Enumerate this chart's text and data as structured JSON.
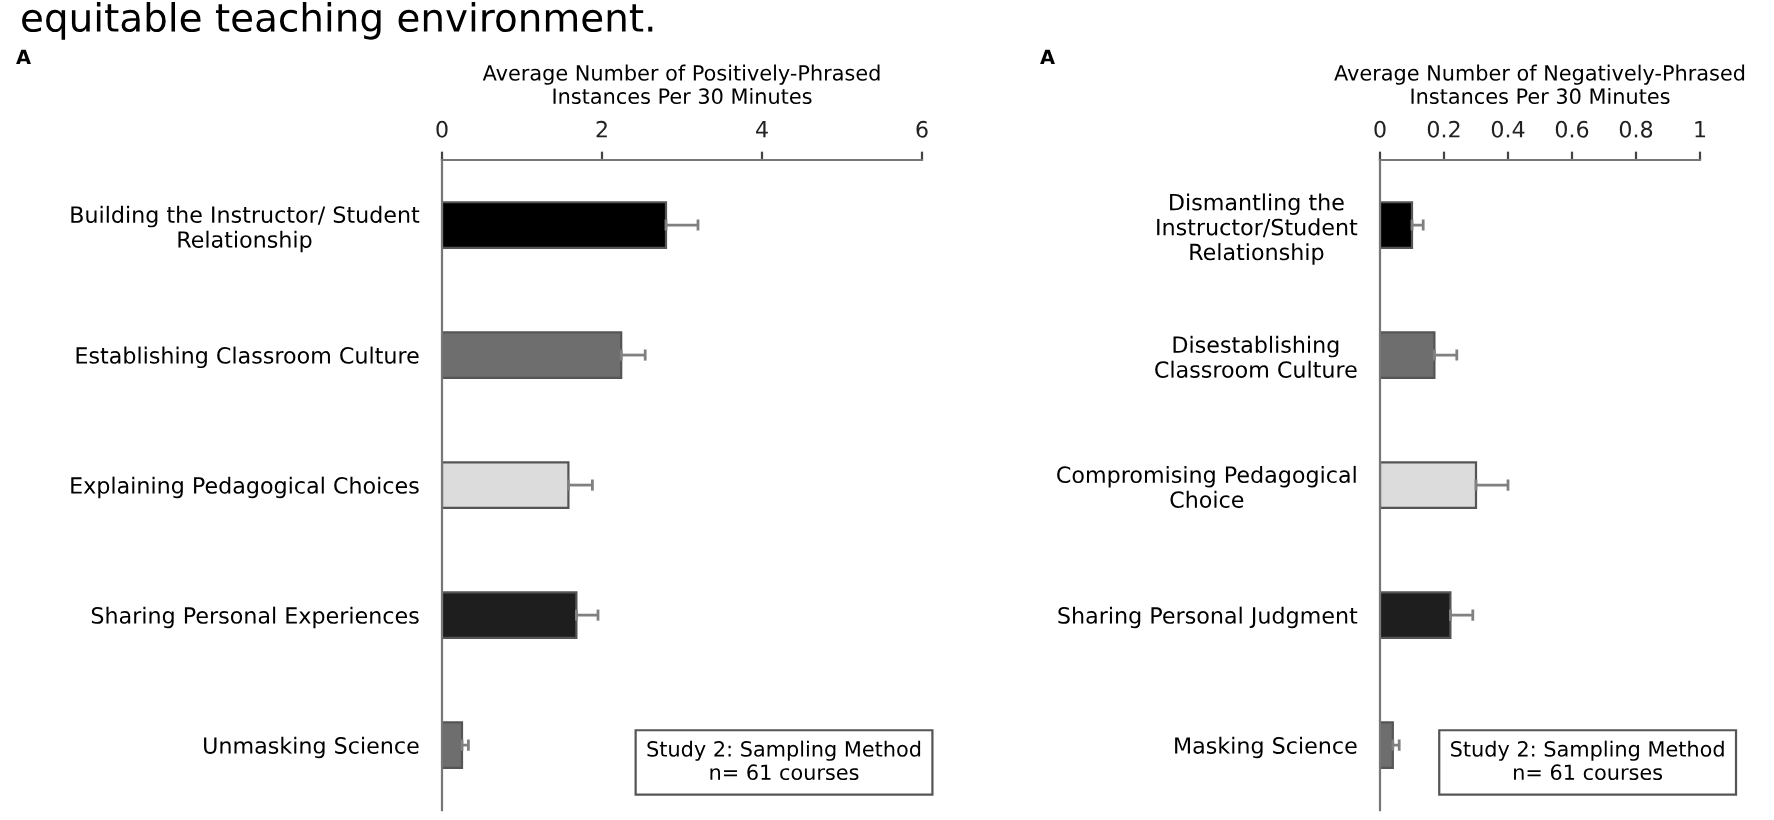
{
  "chart_data": [
    {
      "type": "bar",
      "orientation": "horizontal",
      "xlabel": "Average Number of Positively-Phrased\nInstances Per 30 Minutes",
      "categories": [
        "Building the Instructor/ Student\nRelationship",
        "Establishing Classroom Culture",
        "Explaining Pedagogical Choices",
        "Sharing Personal Experiences",
        "Unmasking Science"
      ],
      "values": [
        2.8,
        2.24,
        1.58,
        1.68,
        0.25
      ],
      "errors": [
        0.4,
        0.3,
        0.3,
        0.27,
        0.08
      ],
      "colors": [
        "#000000",
        "#6e6e6e",
        "#dcdcdc",
        "#1e1e1e",
        "#6e6e6e"
      ],
      "xlim": [
        0,
        6
      ],
      "xticks": [
        0,
        2,
        4,
        6
      ],
      "grid": false,
      "legend": false,
      "annotations": [
        "equitable teaching environment.",
        "A",
        "Study 2: Sampling Method\nn= 61 courses"
      ]
    },
    {
      "type": "bar",
      "orientation": "horizontal",
      "xlabel": "Average Number of Negatively-Phrased\nInstances Per 30 Minutes",
      "categories": [
        "Dismantling the\nInstructor/Student\nRelationship",
        "Disestablishing\nClassroom Culture",
        "Compromising Pedagogical\nChoice",
        "Sharing Personal Judgment",
        "Masking Science"
      ],
      "values": [
        0.1,
        0.17,
        0.3,
        0.22,
        0.04
      ],
      "errors": [
        0.035,
        0.07,
        0.1,
        0.07,
        0.02
      ],
      "colors": [
        "#000000",
        "#6e6e6e",
        "#dcdcdc",
        "#1e1e1e",
        "#6e6e6e"
      ],
      "xlim": [
        0,
        1
      ],
      "xticks": [
        0,
        0.2,
        0.4,
        0.6,
        0.8,
        1
      ],
      "grid": false,
      "legend": false,
      "annotations": [
        "A",
        "Study 2: Sampling Method\nn= 61 courses"
      ]
    }
  ]
}
